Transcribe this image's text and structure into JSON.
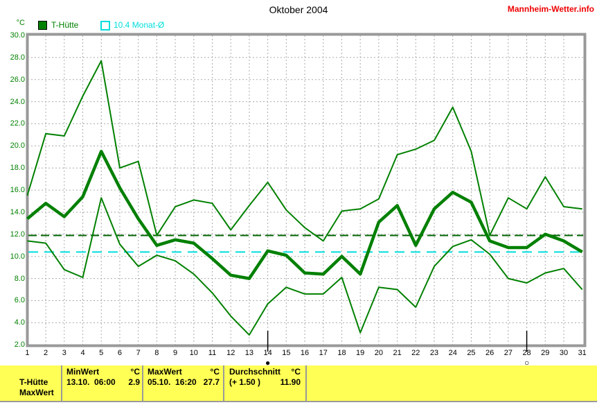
{
  "header": {
    "title": "Oktober 2004",
    "site": "Mannheim-Wetter.info"
  },
  "legend": {
    "series1": "T-Hütte",
    "series2": "10.4 Monat-Ø"
  },
  "axes": {
    "y_unit": "°C",
    "y_ticks": [
      "30.0",
      "28.0",
      "26.0",
      "24.0",
      "22.0",
      "20.0",
      "18.0",
      "16.0",
      "14.0",
      "12.0",
      "10.0",
      "8.0",
      "6.0",
      "4.0",
      "2.0"
    ],
    "grid": true
  },
  "colors": {
    "line_green": "#008000",
    "avg_dashed_green": "#006400",
    "month_avg_cyan": "#00dddd",
    "site_red": "#ee0000",
    "table_yellow": "#ffff55",
    "frame_gray": "#999999",
    "grid_gray": "#aaaaaa"
  },
  "chart_data": {
    "type": "line",
    "title": "Oktober 2004",
    "xlabel": "",
    "ylabel": "°C",
    "ylim": [
      2,
      30
    ],
    "x": [
      1,
      2,
      3,
      4,
      5,
      6,
      7,
      8,
      9,
      10,
      11,
      12,
      13,
      14,
      15,
      16,
      17,
      18,
      19,
      20,
      21,
      22,
      23,
      24,
      25,
      26,
      27,
      28,
      29,
      30,
      31
    ],
    "series": [
      {
        "name": "T-Hütte Maximum",
        "color": "#008000",
        "width": 2,
        "values": [
          15.5,
          21.1,
          20.9,
          24.5,
          27.7,
          18.0,
          18.6,
          11.9,
          14.5,
          15.1,
          14.8,
          12.4,
          14.6,
          16.7,
          14.2,
          12.6,
          11.4,
          14.1,
          14.3,
          15.2,
          19.2,
          19.7,
          20.5,
          23.5,
          19.5,
          11.9,
          15.3,
          14.3,
          17.2,
          14.5,
          14.3
        ]
      },
      {
        "name": "T-Hütte Minimum",
        "color": "#008000",
        "width": 2,
        "values": [
          11.4,
          11.2,
          8.8,
          8.1,
          15.3,
          11.1,
          9.1,
          10.1,
          9.6,
          8.4,
          6.7,
          4.6,
          2.9,
          5.7,
          7.2,
          6.6,
          6.6,
          8.1,
          3.1,
          7.2,
          7.0,
          5.4,
          9.1,
          10.9,
          11.5,
          10.2,
          8.0,
          7.6,
          8.5,
          8.9,
          7.0
        ]
      },
      {
        "name": "T-Hütte Mittel",
        "color": "#008000",
        "width": 4.5,
        "values": [
          13.4,
          14.8,
          13.6,
          15.4,
          19.5,
          16.2,
          13.4,
          11.0,
          11.5,
          11.2,
          9.8,
          8.3,
          8.0,
          10.5,
          10.1,
          8.5,
          8.4,
          10.0,
          8.4,
          13.1,
          14.6,
          11.0,
          14.3,
          15.8,
          14.9,
          11.4,
          10.8,
          10.8,
          12.0,
          11.4,
          10.4
        ]
      }
    ],
    "reference_lines": [
      {
        "name": "Durchschnitt 11.90",
        "value": 11.9,
        "color": "#006400",
        "dash": "12 6",
        "width": 2
      },
      {
        "name": "Monat-Ø 10.4",
        "value": 10.4,
        "color": "#00dddd",
        "dash": "14 9",
        "width": 2
      }
    ],
    "moon_markers": [
      {
        "day": 14,
        "phase": "new"
      },
      {
        "day": 28,
        "phase": "full"
      }
    ],
    "legend_position": "top-left"
  },
  "moon_glyphs": {
    "new": "●",
    "full": "○"
  },
  "table": {
    "series_label": "T-Hütte",
    "series_sublabel": "MaxWert",
    "cols": [
      {
        "header": "MinWert",
        "unit": "°C",
        "value": "13.10.  06:00",
        "number": "2.9"
      },
      {
        "header": "MaxWert",
        "unit": "°C",
        "value": "05.10.  16:20",
        "number": "27.7"
      },
      {
        "header": "Durchschnitt",
        "unit": "°C",
        "value": "(+ 1.50 )",
        "number": "11.90"
      }
    ]
  }
}
